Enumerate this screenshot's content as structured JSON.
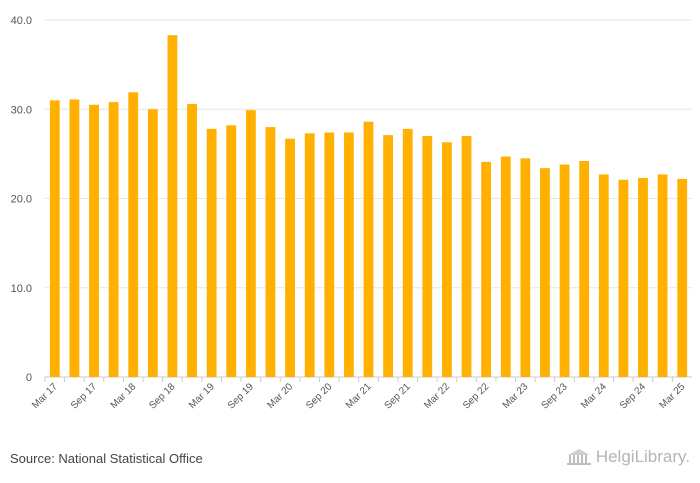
{
  "chart_data": {
    "type": "bar",
    "title": "",
    "xlabel": "",
    "ylabel": "",
    "ylim": [
      0,
      40
    ],
    "yticks": [
      "0",
      "10.0",
      "20.0",
      "30.0",
      "40.0"
    ],
    "bar_color": "#FFB000",
    "grid_color": "#E6E6E6",
    "categories": [
      "Mar 17",
      "Jun 17",
      "Sep 17",
      "Dec 17",
      "Mar 18",
      "Jun 18",
      "Sep 18",
      "Dec 18",
      "Mar 19",
      "Jun 19",
      "Sep 19",
      "Dec 19",
      "Mar 20",
      "Jun 20",
      "Sep 20",
      "Dec 20",
      "Mar 21",
      "Jun 21",
      "Sep 21",
      "Dec 21",
      "Mar 22",
      "Jun 22",
      "Sep 22",
      "Dec 22",
      "Mar 23",
      "Jun 23",
      "Sep 23",
      "Dec 23",
      "Mar 24",
      "Jun 24",
      "Sep 24",
      "Dec 24",
      "Mar 25"
    ],
    "labeled_categories": [
      "Mar 17",
      "Sep 17",
      "Mar 18",
      "Sep 18",
      "Mar 19",
      "Sep 19",
      "Mar 20",
      "Sep 20",
      "Mar 21",
      "Sep 21",
      "Mar 22",
      "Sep 22",
      "Mar 23",
      "Sep 23",
      "Mar 24",
      "Sep 24",
      "Mar 25"
    ],
    "values": [
      31.0,
      31.1,
      30.5,
      30.8,
      31.9,
      30.0,
      38.3,
      30.6,
      27.8,
      28.2,
      29.9,
      28.0,
      26.7,
      27.3,
      27.4,
      27.4,
      28.6,
      27.1,
      27.8,
      27.0,
      26.3,
      27.0,
      24.1,
      24.7,
      24.5,
      23.4,
      23.8,
      24.2,
      22.7,
      22.1,
      22.3,
      22.7,
      22.2
    ]
  },
  "footer": {
    "source": "Source: National Statistical Office",
    "logo_text": "HelgiLibrary."
  }
}
